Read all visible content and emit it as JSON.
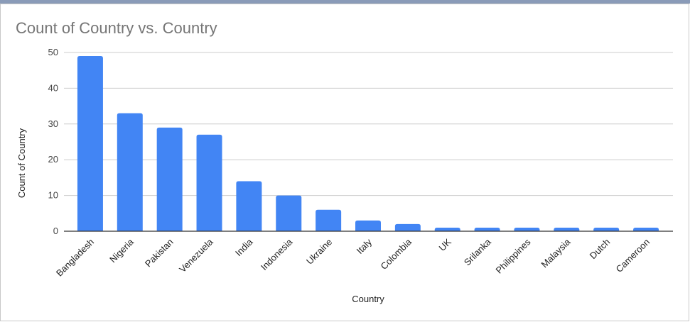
{
  "chart_data": {
    "type": "bar",
    "title": "Count of Country vs. Country",
    "x_label": "Country",
    "y_label": "Count of Country",
    "categories": [
      "Bangladesh",
      "Nigeria",
      "Pakistan",
      "Venezuela",
      "India",
      "Indonesia",
      "Ukraine",
      "Italy",
      "Colombia",
      "UK",
      "Srilanka",
      "Philippines",
      "Malaysia",
      "Dutch",
      "Cameroon"
    ],
    "values": [
      49,
      33,
      29,
      27,
      14,
      10,
      6,
      3,
      2,
      1,
      1,
      1,
      1,
      1,
      1
    ],
    "color": "#4285f4",
    "ylim": [
      0,
      50
    ],
    "yticks": [
      0,
      10,
      20,
      30,
      40,
      50
    ],
    "grid": true
  }
}
